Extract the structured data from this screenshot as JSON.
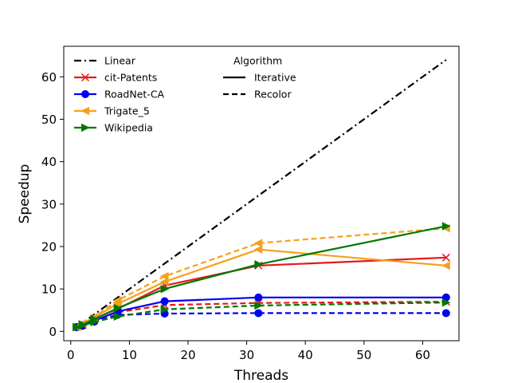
{
  "chart_data": {
    "type": "line",
    "title": "",
    "xlabel": "Threads",
    "ylabel": "Speedup",
    "xlim": [
      -1.2,
      66.2
    ],
    "ylim": [
      -2.2,
      67.2
    ],
    "x_ticks": [
      0,
      10,
      20,
      30,
      40,
      50,
      60
    ],
    "y_ticks": [
      0,
      10,
      20,
      30,
      40,
      50,
      60
    ],
    "grid": false,
    "legend_placement": "top-left",
    "legend_title": "Algorithm",
    "style_legend": [
      {
        "label": "Iterative",
        "dash": "solid"
      },
      {
        "label": "Recolor",
        "dash": "dashed"
      }
    ],
    "linear": {
      "name": "Linear",
      "color": "#000000",
      "x": [
        1,
        64
      ],
      "y": [
        1,
        64
      ]
    },
    "datasets": [
      {
        "name": "cit-Patents",
        "color": "#e31a1c",
        "marker": "x",
        "iterative": {
          "x": [
            1,
            2,
            4,
            8,
            16,
            32,
            64
          ],
          "y": [
            1.0,
            1.7,
            3.0,
            5.3,
            10.8,
            15.5,
            17.4
          ]
        },
        "recolor": {
          "x": [
            1,
            2,
            4,
            8,
            16,
            32,
            64
          ],
          "y": [
            1.0,
            1.5,
            2.6,
            4.5,
            6.2,
            6.7,
            7.0
          ]
        }
      },
      {
        "name": "RoadNet-CA",
        "color": "#0000ee",
        "marker": "o",
        "iterative": {
          "x": [
            1,
            2,
            4,
            8,
            16,
            32,
            64
          ],
          "y": [
            1.0,
            1.5,
            2.5,
            4.7,
            7.1,
            8.0,
            8.0
          ]
        },
        "recolor": {
          "x": [
            1,
            2,
            4,
            8,
            16,
            32,
            64
          ],
          "y": [
            1.0,
            1.3,
            2.3,
            3.9,
            4.2,
            4.3,
            4.3
          ]
        }
      },
      {
        "name": "Trigate_5",
        "color": "#f4a11a",
        "marker": "<",
        "iterative": {
          "x": [
            1,
            2,
            4,
            8,
            16,
            32,
            64
          ],
          "y": [
            1.0,
            1.8,
            3.3,
            6.5,
            11.7,
            19.3,
            15.5
          ]
        },
        "recolor": {
          "x": [
            1,
            2,
            4,
            8,
            16,
            32,
            64
          ],
          "y": [
            1.0,
            1.8,
            3.4,
            7.3,
            13.0,
            20.8,
            24.3
          ]
        }
      },
      {
        "name": "Wikipedia",
        "color": "#007800",
        "marker": ">",
        "iterative": {
          "x": [
            1,
            2,
            4,
            8,
            16,
            32,
            64
          ],
          "y": [
            1.0,
            1.6,
            2.9,
            5.5,
            10.0,
            15.8,
            24.8
          ]
        },
        "recolor": {
          "x": [
            1,
            2,
            4,
            8,
            16,
            32,
            64
          ],
          "y": [
            1.0,
            1.4,
            2.2,
            3.5,
            5.2,
            6.1,
            6.8
          ]
        }
      }
    ]
  }
}
